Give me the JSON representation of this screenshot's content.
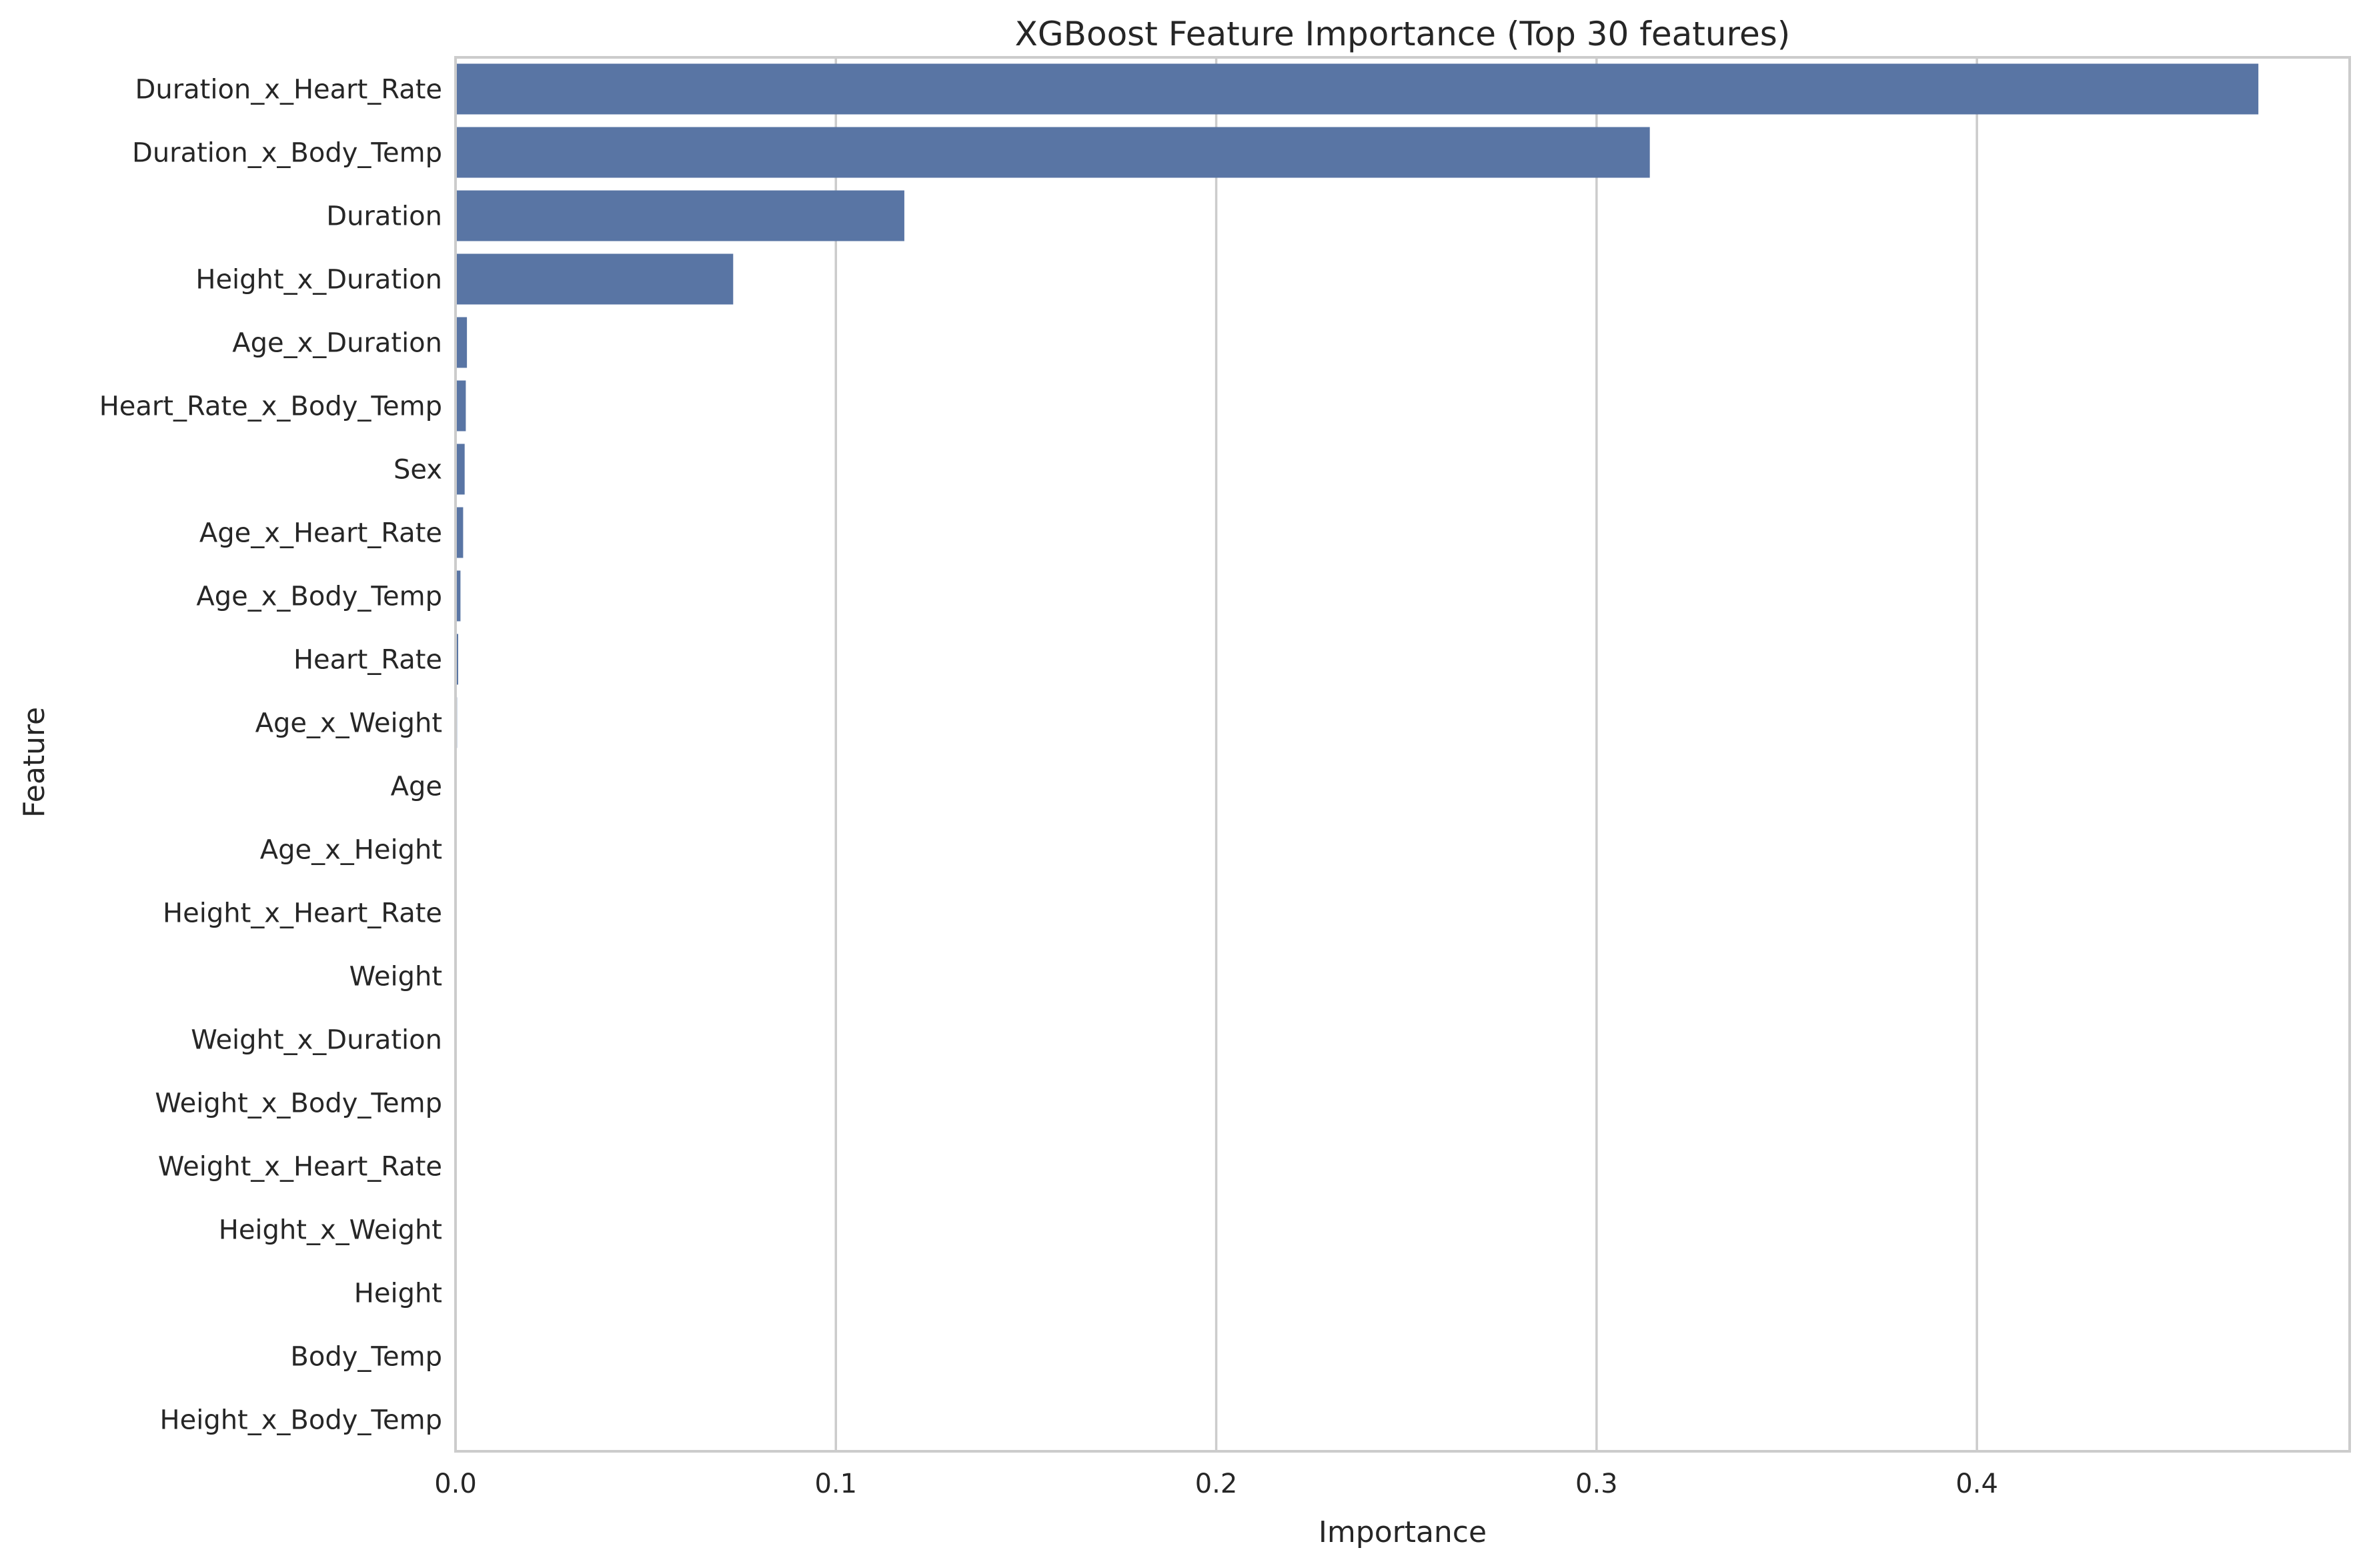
{
  "chart_data": {
    "type": "bar",
    "orientation": "horizontal",
    "title": "XGBoost Feature Importance (Top 30 features)",
    "xlabel": "Importance",
    "ylabel": "Feature",
    "xlim": [
      0,
      0.498
    ],
    "xticks": [
      0.0,
      0.1,
      0.2,
      0.3,
      0.4
    ],
    "xtick_labels": [
      "0.0",
      "0.1",
      "0.2",
      "0.3",
      "0.4"
    ],
    "grid": "vertical",
    "bar_color": "#5975a4",
    "categories": [
      "Duration_x_Heart_Rate",
      "Duration_x_Body_Temp",
      "Duration",
      "Height_x_Duration",
      "Age_x_Duration",
      "Heart_Rate_x_Body_Temp",
      "Sex",
      "Age_x_Heart_Rate",
      "Age_x_Body_Temp",
      "Heart_Rate",
      "Age_x_Weight",
      "Age",
      "Age_x_Height",
      "Height_x_Heart_Rate",
      "Weight",
      "Weight_x_Duration",
      "Weight_x_Body_Temp",
      "Weight_x_Heart_Rate",
      "Height_x_Weight",
      "Height",
      "Body_Temp",
      "Height_x_Body_Temp"
    ],
    "values": [
      0.474,
      0.314,
      0.118,
      0.073,
      0.003,
      0.0027,
      0.0024,
      0.002,
      0.0013,
      0.0007,
      0.0004,
      0.0001,
      0.0001,
      0.0001,
      0.0001,
      0.0001,
      0.0001,
      0.0001,
      0.0001,
      0.0001,
      0.0001,
      0.0001
    ]
  }
}
